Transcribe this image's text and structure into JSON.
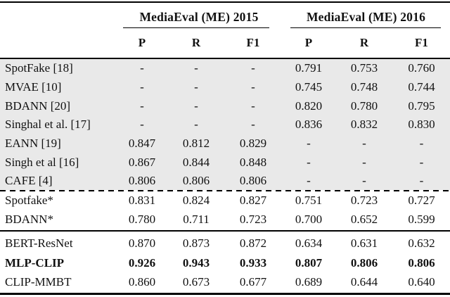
{
  "colors": {
    "shaded_row_bg": "#e9e9e9",
    "rule_color": "#000000",
    "text_color": "#111111"
  },
  "table": {
    "col_groups": [
      {
        "label": "MediaEval (ME) 2015",
        "columns": [
          "P",
          "R",
          "F1"
        ]
      },
      {
        "label": "MediaEval (ME) 2016",
        "columns": [
          "P",
          "R",
          "F1"
        ]
      }
    ],
    "sections": [
      {
        "name": "published-prior-work",
        "shaded": true,
        "divider_after": "dashed",
        "rows": [
          {
            "label": "SpotFake [18]",
            "bold": false,
            "values": [
              "-",
              "-",
              "-",
              "0.791",
              "0.753",
              "0.760"
            ]
          },
          {
            "label": "MVAE [10]",
            "bold": false,
            "values": [
              "-",
              "-",
              "-",
              "0.745",
              "0.748",
              "0.744"
            ]
          },
          {
            "label": "BDANN [20]",
            "bold": false,
            "values": [
              "-",
              "-",
              "-",
              "0.820",
              "0.780",
              "0.795"
            ]
          },
          {
            "label": "Singhal et al. [17]",
            "bold": false,
            "values": [
              "-",
              "-",
              "-",
              "0.836",
              "0.832",
              "0.830"
            ]
          },
          {
            "label": "EANN [19]",
            "bold": false,
            "values": [
              "0.847",
              "0.812",
              "0.829",
              "-",
              "-",
              "-"
            ]
          },
          {
            "label": "Singh et al [16]",
            "bold": false,
            "values": [
              "0.867",
              "0.844",
              "0.848",
              "-",
              "-",
              "-"
            ]
          },
          {
            "label": "CAFE [4]",
            "bold": false,
            "values": [
              "0.806",
              "0.806",
              "0.806",
              "-",
              "-",
              "-"
            ]
          }
        ]
      },
      {
        "name": "reproduced-baselines",
        "shaded": false,
        "divider_after": "solid",
        "rows": [
          {
            "label": "Spotfake*",
            "bold": false,
            "values": [
              "0.831",
              "0.824",
              "0.827",
              "0.751",
              "0.723",
              "0.727"
            ]
          },
          {
            "label": "BDANN*",
            "bold": false,
            "values": [
              "0.780",
              "0.711",
              "0.723",
              "0.700",
              "0.652",
              "0.599"
            ]
          }
        ]
      },
      {
        "name": "proposed-models",
        "shaded": false,
        "divider_after": "none",
        "rows": [
          {
            "label": "BERT-ResNet",
            "bold": false,
            "values": [
              "0.870",
              "0.873",
              "0.872",
              "0.634",
              "0.631",
              "0.632"
            ]
          },
          {
            "label": "MLP-CLIP",
            "bold": true,
            "values": [
              "0.926",
              "0.943",
              "0.933",
              "0.807",
              "0.806",
              "0.806"
            ]
          },
          {
            "label": "CLIP-MMBT",
            "bold": false,
            "values": [
              "0.860",
              "0.673",
              "0.677",
              "0.689",
              "0.644",
              "0.640"
            ]
          }
        ]
      }
    ]
  }
}
